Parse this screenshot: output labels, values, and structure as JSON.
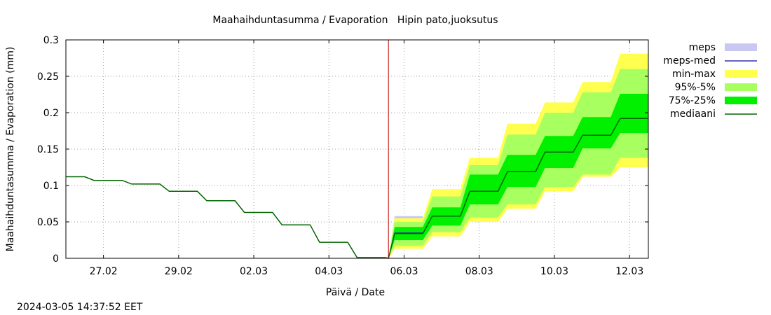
{
  "chart_data": {
    "type": "area",
    "title": "Maahaihduntasumma / Evaporation   Hipin pato,juoksutus",
    "ylabel": "Maahaihduntasumma / Evaporation (mm)",
    "xlabel": "Päivä / Date",
    "timestamp": "2024-03-05 14:37:52 EET",
    "xlim": [
      "2024-02-26 00:00",
      "2024-03-12 12:00"
    ],
    "ylim": [
      0,
      0.3
    ],
    "grid": true,
    "legend_position": "right",
    "y_ticks": [
      0,
      0.05,
      0.1,
      0.15,
      0.2,
      0.25,
      0.3
    ],
    "y_tick_labels": [
      "0",
      "0.05",
      "0.1",
      "0.15",
      "0.2",
      "0.25",
      "0.3"
    ],
    "x_ticks": [
      "2024-02-27",
      "2024-02-29",
      "2024-03-02",
      "2024-03-04",
      "2024-03-06",
      "2024-03-08",
      "2024-03-10",
      "2024-03-12"
    ],
    "x_tick_labels": [
      "27.02",
      "29.02",
      "02.03",
      "04.03",
      "06.03",
      "08.03",
      "10.03",
      "12.03"
    ],
    "forecast_start": "2024-03-05 14:00",
    "x": [
      "2024-02-26 00:00",
      "2024-02-26 12:00",
      "2024-02-26 18:00",
      "2024-02-27 12:00",
      "2024-02-27 18:00",
      "2024-02-28 12:00",
      "2024-02-28 18:00",
      "2024-02-29 12:00",
      "2024-02-29 18:00",
      "2024-03-01 12:00",
      "2024-03-01 18:00",
      "2024-03-02 12:00",
      "2024-03-02 18:00",
      "2024-03-03 12:00",
      "2024-03-03 18:00",
      "2024-03-04 12:00",
      "2024-03-04 18:00",
      "2024-03-05 12:00",
      "2024-03-05 14:00",
      "2024-03-05 18:00",
      "2024-03-06 12:00",
      "2024-03-06 18:00",
      "2024-03-07 12:00",
      "2024-03-07 18:00",
      "2024-03-08 12:00",
      "2024-03-08 18:00",
      "2024-03-09 12:00",
      "2024-03-09 18:00",
      "2024-03-10 12:00",
      "2024-03-10 18:00",
      "2024-03-11 12:00",
      "2024-03-11 18:00",
      "2024-03-12 12:00"
    ],
    "series": [
      {
        "name": "meps",
        "color": "#c8c8f0",
        "type": "band",
        "lower": [
          null,
          null,
          null,
          null,
          null,
          null,
          null,
          null,
          null,
          null,
          null,
          null,
          null,
          null,
          null,
          null,
          null,
          null,
          0.0,
          0.025,
          0.025,
          null,
          null,
          null,
          null,
          null,
          null,
          null,
          null,
          null,
          null,
          null,
          null
        ],
        "upper": [
          null,
          null,
          null,
          null,
          null,
          null,
          null,
          null,
          null,
          null,
          null,
          null,
          null,
          null,
          null,
          null,
          null,
          null,
          0.0,
          0.058,
          0.058,
          0.104,
          0.104,
          null,
          null,
          null,
          null,
          null,
          null,
          null,
          null,
          null,
          null
        ]
      },
      {
        "name": "meps-med",
        "color": "#3030b0",
        "type": "line",
        "values": [
          null,
          null,
          null,
          null,
          null,
          null,
          null,
          null,
          null,
          null,
          null,
          null,
          null,
          null,
          null,
          null,
          null,
          null,
          0.0,
          0.035,
          0.035,
          null,
          null,
          null,
          null,
          null,
          null,
          null,
          null,
          null,
          null,
          null,
          null
        ]
      },
      {
        "name": "min-max",
        "color": "#ffff50",
        "type": "band",
        "lower": [
          null,
          null,
          null,
          null,
          null,
          null,
          null,
          null,
          null,
          null,
          null,
          null,
          null,
          null,
          null,
          null,
          null,
          null,
          0.0,
          0.013,
          0.013,
          0.03,
          0.03,
          0.05,
          0.05,
          0.068,
          0.068,
          0.092,
          0.092,
          0.112,
          0.112,
          0.125,
          0.125
        ],
        "upper": [
          null,
          null,
          null,
          null,
          null,
          null,
          null,
          null,
          null,
          null,
          null,
          null,
          null,
          null,
          null,
          null,
          null,
          null,
          0.0,
          0.055,
          0.055,
          0.095,
          0.095,
          0.138,
          0.138,
          0.185,
          0.185,
          0.214,
          0.214,
          0.242,
          0.242,
          0.281,
          0.281
        ]
      },
      {
        "name": "95%-5%",
        "color": "#a8ff60",
        "type": "band",
        "lower": [
          null,
          null,
          null,
          null,
          null,
          null,
          null,
          null,
          null,
          null,
          null,
          null,
          null,
          null,
          null,
          null,
          null,
          null,
          0.0,
          0.017,
          0.017,
          0.036,
          0.036,
          0.056,
          0.056,
          0.074,
          0.074,
          0.098,
          0.098,
          0.115,
          0.115,
          0.138,
          0.138
        ],
        "upper": [
          null,
          null,
          null,
          null,
          null,
          null,
          null,
          null,
          null,
          null,
          null,
          null,
          null,
          null,
          null,
          null,
          null,
          null,
          0.0,
          0.05,
          0.05,
          0.085,
          0.085,
          0.128,
          0.128,
          0.17,
          0.17,
          0.2,
          0.2,
          0.228,
          0.228,
          0.26,
          0.26
        ]
      },
      {
        "name": "75%-25%",
        "color": "#00f000",
        "type": "band",
        "lower": [
          null,
          null,
          null,
          null,
          null,
          null,
          null,
          null,
          null,
          null,
          null,
          null,
          null,
          null,
          null,
          null,
          null,
          null,
          0.0,
          0.025,
          0.025,
          0.045,
          0.045,
          0.074,
          0.074,
          0.098,
          0.098,
          0.124,
          0.124,
          0.151,
          0.151,
          0.172,
          0.172
        ],
        "upper": [
          null,
          null,
          null,
          null,
          null,
          null,
          null,
          null,
          null,
          null,
          null,
          null,
          null,
          null,
          null,
          null,
          null,
          null,
          0.0,
          0.043,
          0.043,
          0.07,
          0.07,
          0.115,
          0.115,
          0.142,
          0.142,
          0.168,
          0.168,
          0.194,
          0.194,
          0.226,
          0.226
        ]
      },
      {
        "name": "mediaani",
        "color": "#006400",
        "type": "line",
        "values": [
          0.112,
          0.112,
          0.107,
          0.107,
          0.102,
          0.102,
          0.092,
          0.092,
          0.079,
          0.079,
          0.063,
          0.063,
          0.046,
          0.046,
          0.022,
          0.022,
          0.001,
          0.001,
          0.0,
          0.034,
          0.034,
          0.058,
          0.058,
          0.092,
          0.092,
          0.119,
          0.119,
          0.146,
          0.146,
          0.169,
          0.169,
          0.192,
          0.192
        ]
      }
    ]
  }
}
